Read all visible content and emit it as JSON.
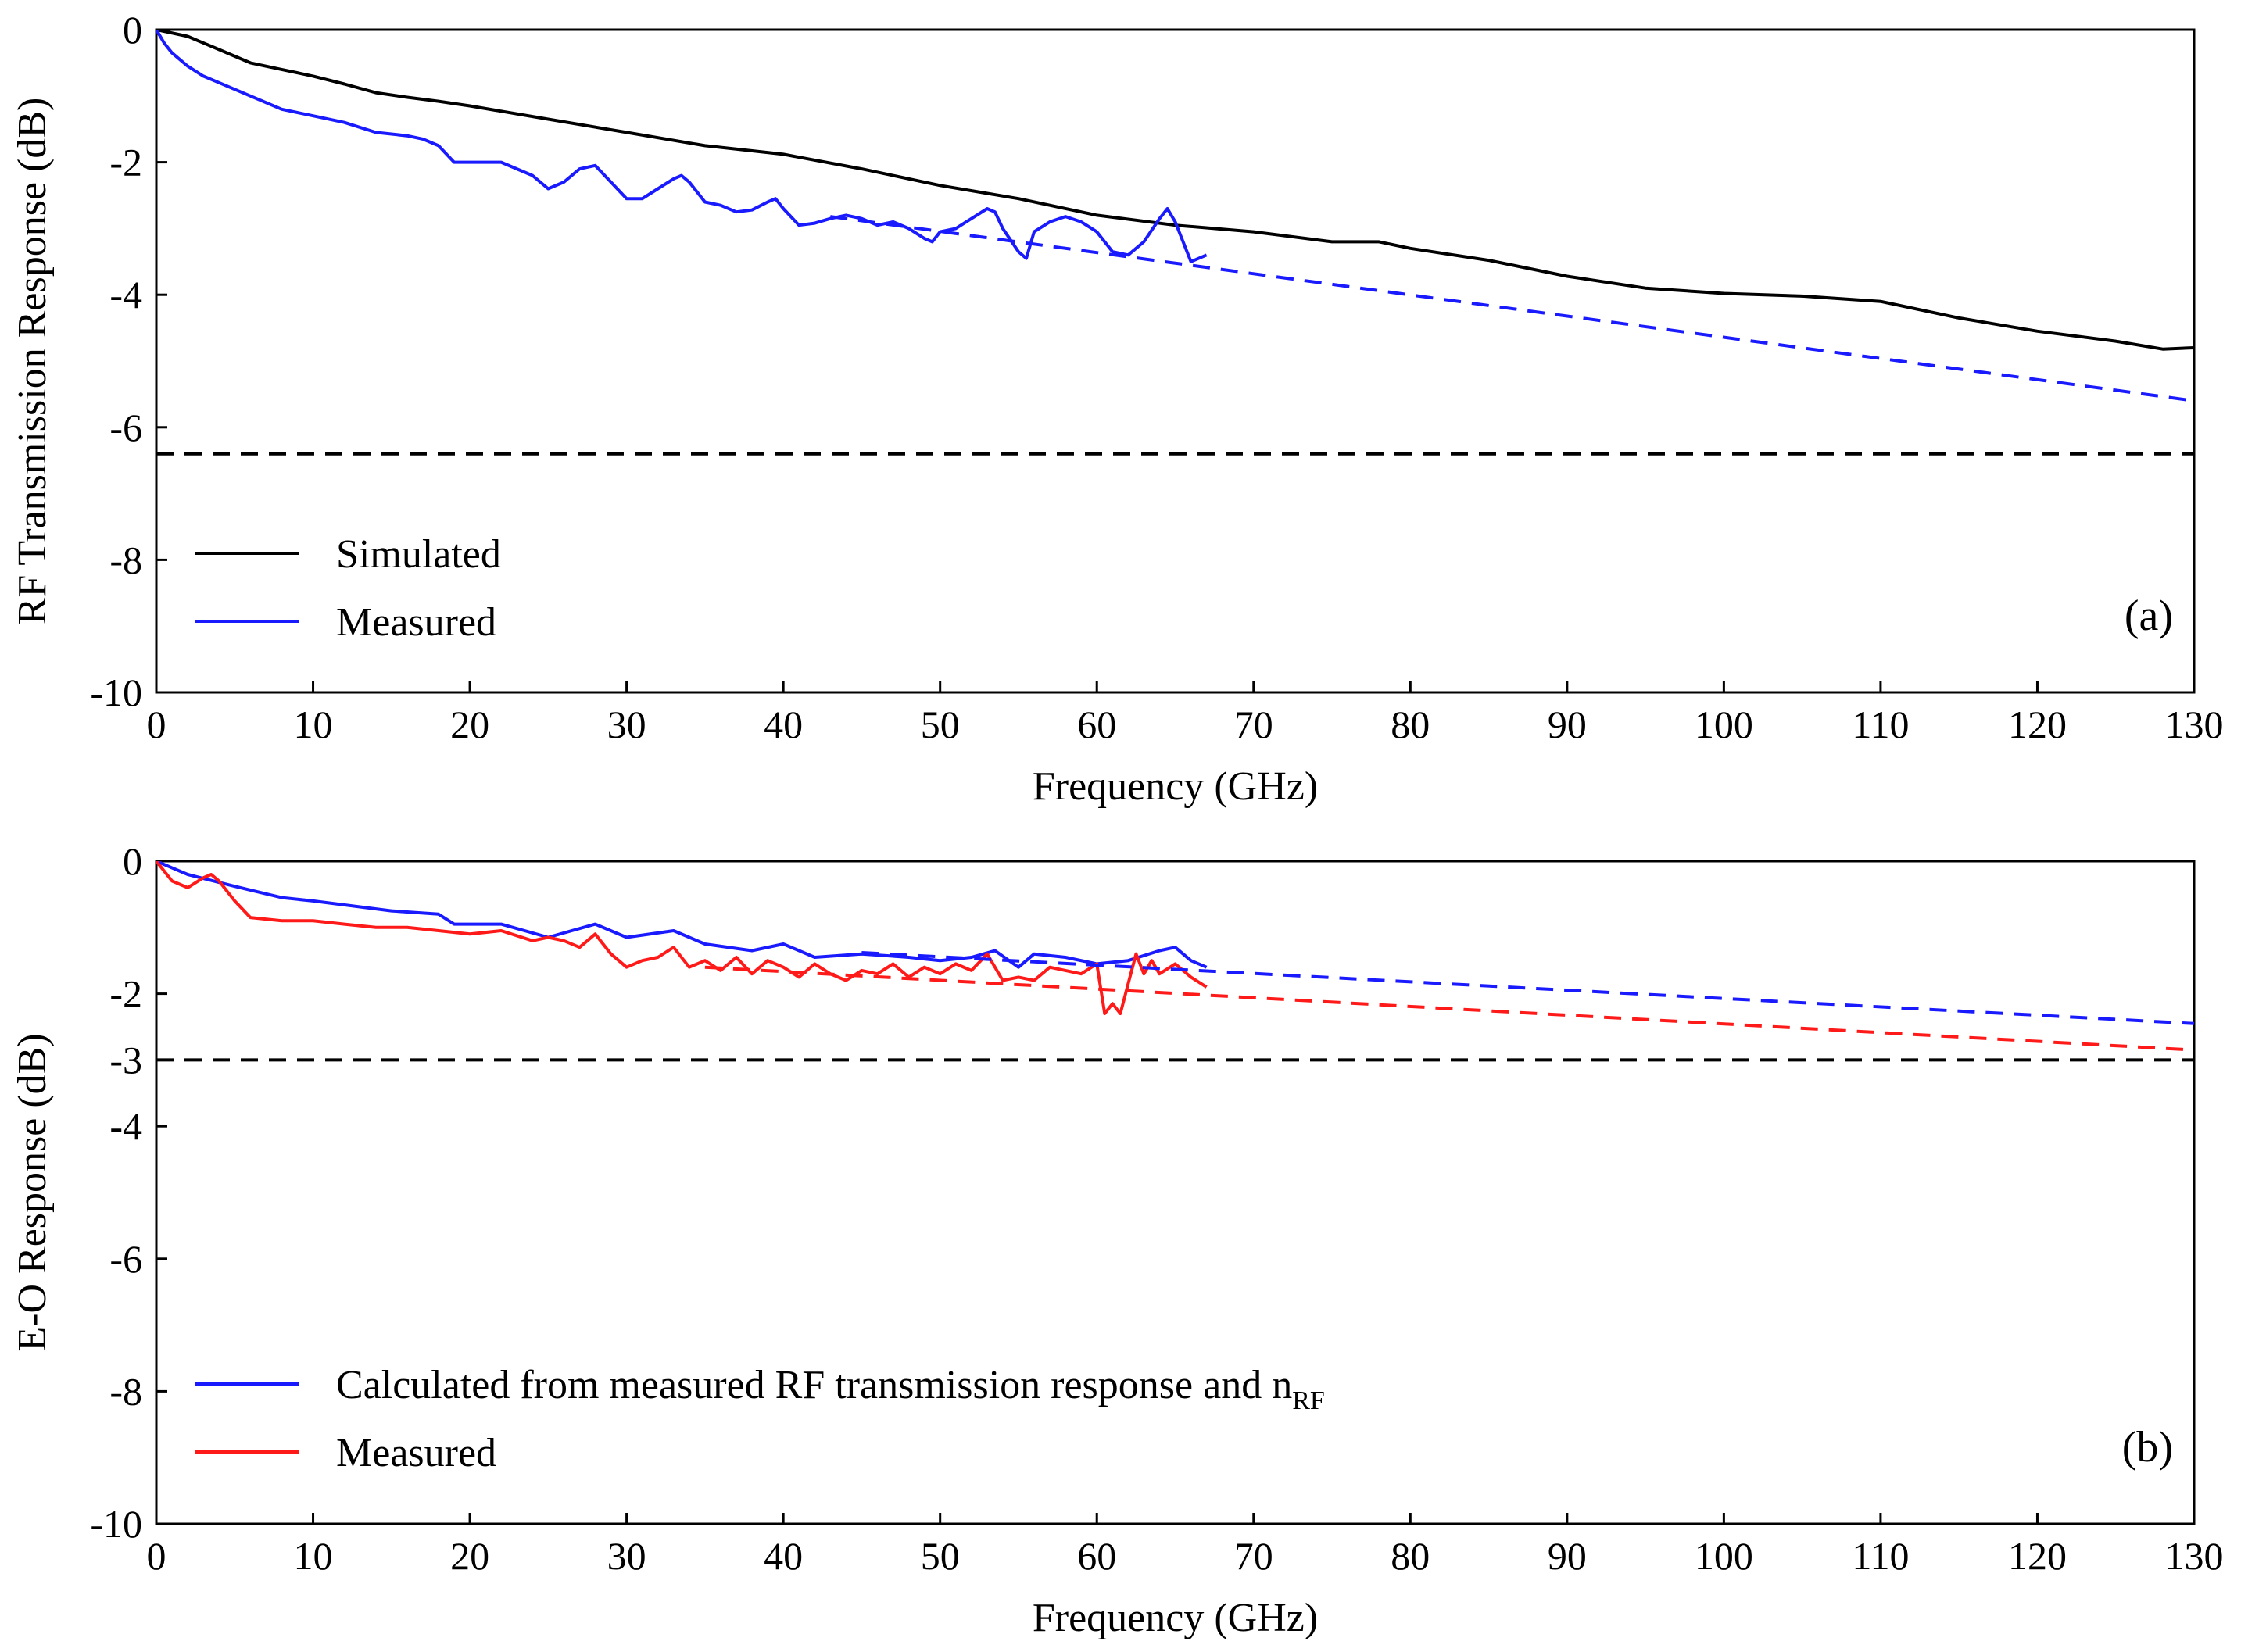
{
  "chart_data": [
    {
      "type": "line",
      "panel_label": "(a)",
      "xlabel": "Frequency (GHz)",
      "ylabel": "RF Transmission Response (dB)",
      "xlim": [
        0,
        130
      ],
      "ylim": [
        -10,
        0
      ],
      "xticks": [
        0,
        10,
        20,
        30,
        40,
        50,
        60,
        70,
        80,
        90,
        100,
        110,
        120,
        130
      ],
      "yticks": [
        0,
        -2,
        -4,
        -6,
        -8,
        -10
      ],
      "legend_position": "bottom-left",
      "series": [
        {
          "name": "Simulated",
          "color": "#000000",
          "style": "solid",
          "in_legend": true,
          "x": [
            0,
            2,
            4,
            6,
            8,
            10,
            12,
            14,
            16,
            18,
            20,
            25,
            30,
            35,
            40,
            45,
            50,
            55,
            60,
            65,
            70,
            75,
            78,
            80,
            85,
            90,
            95,
            100,
            105,
            110,
            115,
            120,
            125,
            128,
            130
          ],
          "y": [
            0,
            -0.1,
            -0.3,
            -0.5,
            -0.6,
            -0.7,
            -0.82,
            -0.95,
            -1.02,
            -1.08,
            -1.15,
            -1.35,
            -1.55,
            -1.75,
            -1.88,
            -2.1,
            -2.35,
            -2.55,
            -2.8,
            -2.95,
            -3.05,
            -3.2,
            -3.2,
            -3.3,
            -3.48,
            -3.72,
            -3.9,
            -3.98,
            -4.02,
            -4.1,
            -4.35,
            -4.55,
            -4.7,
            -4.82,
            -4.8
          ]
        },
        {
          "name": "Measured",
          "color": "#1a1aff",
          "style": "solid",
          "in_legend": true,
          "x": [
            0,
            0.5,
            1,
            2,
            3,
            4,
            5,
            6,
            8,
            10,
            12,
            14,
            16,
            17,
            18,
            19,
            20,
            22,
            24,
            25,
            26,
            27,
            28,
            29,
            30,
            31,
            32,
            33,
            33.5,
            34,
            35,
            36,
            37,
            38,
            39,
            39.5,
            40,
            41,
            42,
            43,
            44,
            45,
            46,
            47,
            48,
            49,
            49.5,
            50,
            51,
            52,
            53,
            53.5,
            54,
            55,
            55.5,
            56,
            57,
            58,
            59,
            60,
            61,
            62,
            63,
            64,
            64.5,
            65,
            66,
            67
          ],
          "y": [
            0,
            -0.2,
            -0.35,
            -0.55,
            -0.7,
            -0.8,
            -0.9,
            -1.0,
            -1.2,
            -1.3,
            -1.4,
            -1.55,
            -1.6,
            -1.65,
            -1.75,
            -2.0,
            -2.0,
            -2.0,
            -2.2,
            -2.4,
            -2.3,
            -2.1,
            -2.05,
            -2.3,
            -2.55,
            -2.55,
            -2.4,
            -2.25,
            -2.2,
            -2.3,
            -2.6,
            -2.65,
            -2.75,
            -2.72,
            -2.6,
            -2.55,
            -2.7,
            -2.95,
            -2.92,
            -2.85,
            -2.8,
            -2.85,
            -2.95,
            -2.9,
            -3.0,
            -3.15,
            -3.2,
            -3.05,
            -3.0,
            -2.85,
            -2.7,
            -2.75,
            -3.0,
            -3.35,
            -3.45,
            -3.05,
            -2.9,
            -2.82,
            -2.9,
            -3.05,
            -3.35,
            -3.4,
            -3.2,
            -2.85,
            -2.7,
            -2.9,
            -3.5,
            -3.4
          ]
        },
        {
          "name": "Measured linear fit (extrapolated)",
          "color": "#1a1aff",
          "style": "dashed",
          "in_legend": false,
          "x": [
            43,
            130
          ],
          "y": [
            -2.82,
            -5.6
          ]
        },
        {
          "name": "Reference level",
          "color": "#000000",
          "style": "dashed",
          "in_legend": false,
          "x": [
            0,
            130
          ],
          "y": [
            -6.4,
            -6.4
          ]
        }
      ]
    },
    {
      "type": "line",
      "panel_label": "(b)",
      "xlabel": "Frequency (GHz)",
      "ylabel": "E-O Response (dB)",
      "xlim": [
        0,
        130
      ],
      "ylim": [
        -10,
        0
      ],
      "xticks": [
        0,
        10,
        20,
        30,
        40,
        50,
        60,
        70,
        80,
        90,
        100,
        110,
        120,
        130
      ],
      "yticks": [
        0,
        -2,
        -3,
        -4,
        -6,
        -8,
        -10
      ],
      "legend_position": "bottom-left",
      "series": [
        {
          "name": "Calculated from measured RF transmission response and n",
          "name_subscript": "RF",
          "color": "#1a1aff",
          "style": "solid",
          "in_legend": true,
          "x": [
            0,
            2,
            5,
            8,
            10,
            15,
            18,
            19,
            22,
            25,
            28,
            30,
            33,
            35,
            38,
            40,
            42,
            45,
            48,
            50,
            52,
            53.5,
            55,
            56,
            58,
            60,
            62,
            64,
            65,
            66,
            67
          ],
          "y": [
            0,
            -0.2,
            -0.38,
            -0.55,
            -0.6,
            -0.75,
            -0.8,
            -0.95,
            -0.95,
            -1.15,
            -0.95,
            -1.15,
            -1.05,
            -1.25,
            -1.35,
            -1.25,
            -1.45,
            -1.4,
            -1.45,
            -1.5,
            -1.45,
            -1.35,
            -1.6,
            -1.4,
            -1.45,
            -1.55,
            -1.5,
            -1.35,
            -1.3,
            -1.5,
            -1.6
          ]
        },
        {
          "name": "Measured",
          "color": "#ff1a1a",
          "style": "solid",
          "in_legend": true,
          "x": [
            0,
            1,
            2,
            3,
            3.5,
            4,
            5,
            6,
            8,
            10,
            12,
            14,
            16,
            18,
            20,
            22,
            24,
            25,
            26,
            27,
            28,
            29,
            30,
            31,
            32,
            33,
            34,
            35,
            36,
            37,
            38,
            39,
            40,
            41,
            42,
            43,
            44,
            45,
            46,
            47,
            48,
            49,
            50,
            51,
            52,
            53,
            54,
            55,
            56,
            57,
            58,
            59,
            60,
            60.5,
            61,
            61.5,
            62,
            62.5,
            63,
            63.5,
            64,
            65,
            66,
            67
          ],
          "y": [
            0,
            -0.3,
            -0.4,
            -0.25,
            -0.2,
            -0.3,
            -0.6,
            -0.85,
            -0.9,
            -0.9,
            -0.95,
            -1.0,
            -1.0,
            -1.05,
            -1.1,
            -1.05,
            -1.2,
            -1.15,
            -1.2,
            -1.3,
            -1.1,
            -1.4,
            -1.6,
            -1.5,
            -1.45,
            -1.3,
            -1.6,
            -1.5,
            -1.65,
            -1.45,
            -1.7,
            -1.5,
            -1.6,
            -1.75,
            -1.55,
            -1.7,
            -1.8,
            -1.65,
            -1.7,
            -1.55,
            -1.75,
            -1.6,
            -1.7,
            -1.55,
            -1.65,
            -1.4,
            -1.8,
            -1.75,
            -1.8,
            -1.6,
            -1.65,
            -1.7,
            -1.55,
            -2.3,
            -2.15,
            -2.3,
            -1.85,
            -1.4,
            -1.7,
            -1.5,
            -1.7,
            -1.55,
            -1.75,
            -1.9
          ]
        },
        {
          "name": "Calculated linear fit (extrapolated)",
          "color": "#1a1aff",
          "style": "dashed",
          "in_legend": false,
          "x": [
            45,
            130
          ],
          "y": [
            -1.38,
            -2.45
          ]
        },
        {
          "name": "Measured linear fit (extrapolated)",
          "color": "#ff1a1a",
          "style": "dashed",
          "in_legend": false,
          "x": [
            35,
            130
          ],
          "y": [
            -1.6,
            -2.85
          ]
        },
        {
          "name": "-3 dB level",
          "color": "#000000",
          "style": "dashed",
          "in_legend": false,
          "x": [
            0,
            130
          ],
          "y": [
            -3,
            -3
          ]
        }
      ]
    }
  ]
}
